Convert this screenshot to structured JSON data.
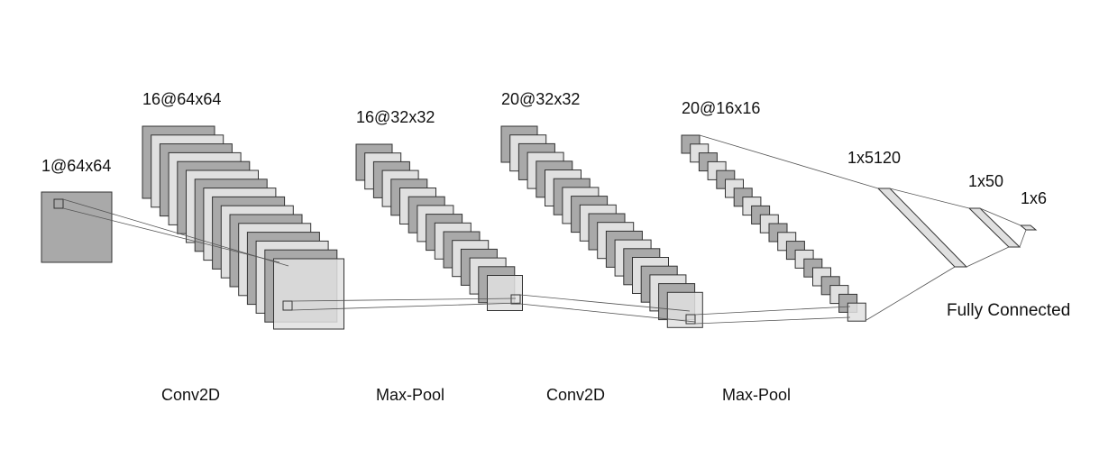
{
  "layers": [
    {
      "shape": "1@64x64"
    },
    {
      "shape": "16@64x64"
    },
    {
      "shape": "16@32x32"
    },
    {
      "shape": "20@32x32"
    },
    {
      "shape": "20@16x16"
    },
    {
      "shape": "1x5120"
    },
    {
      "shape": "1x50"
    },
    {
      "shape": "1x6"
    }
  ],
  "operations": [
    "Conv2D",
    "Max-Pool",
    "Conv2D",
    "Max-Pool"
  ],
  "fully_connected_label": "Fully Connected",
  "colors": {
    "dark_fill": "#a9a9a9",
    "light_fill": "#e0e0e0",
    "stroke": "#333333",
    "connector": "#555555"
  }
}
